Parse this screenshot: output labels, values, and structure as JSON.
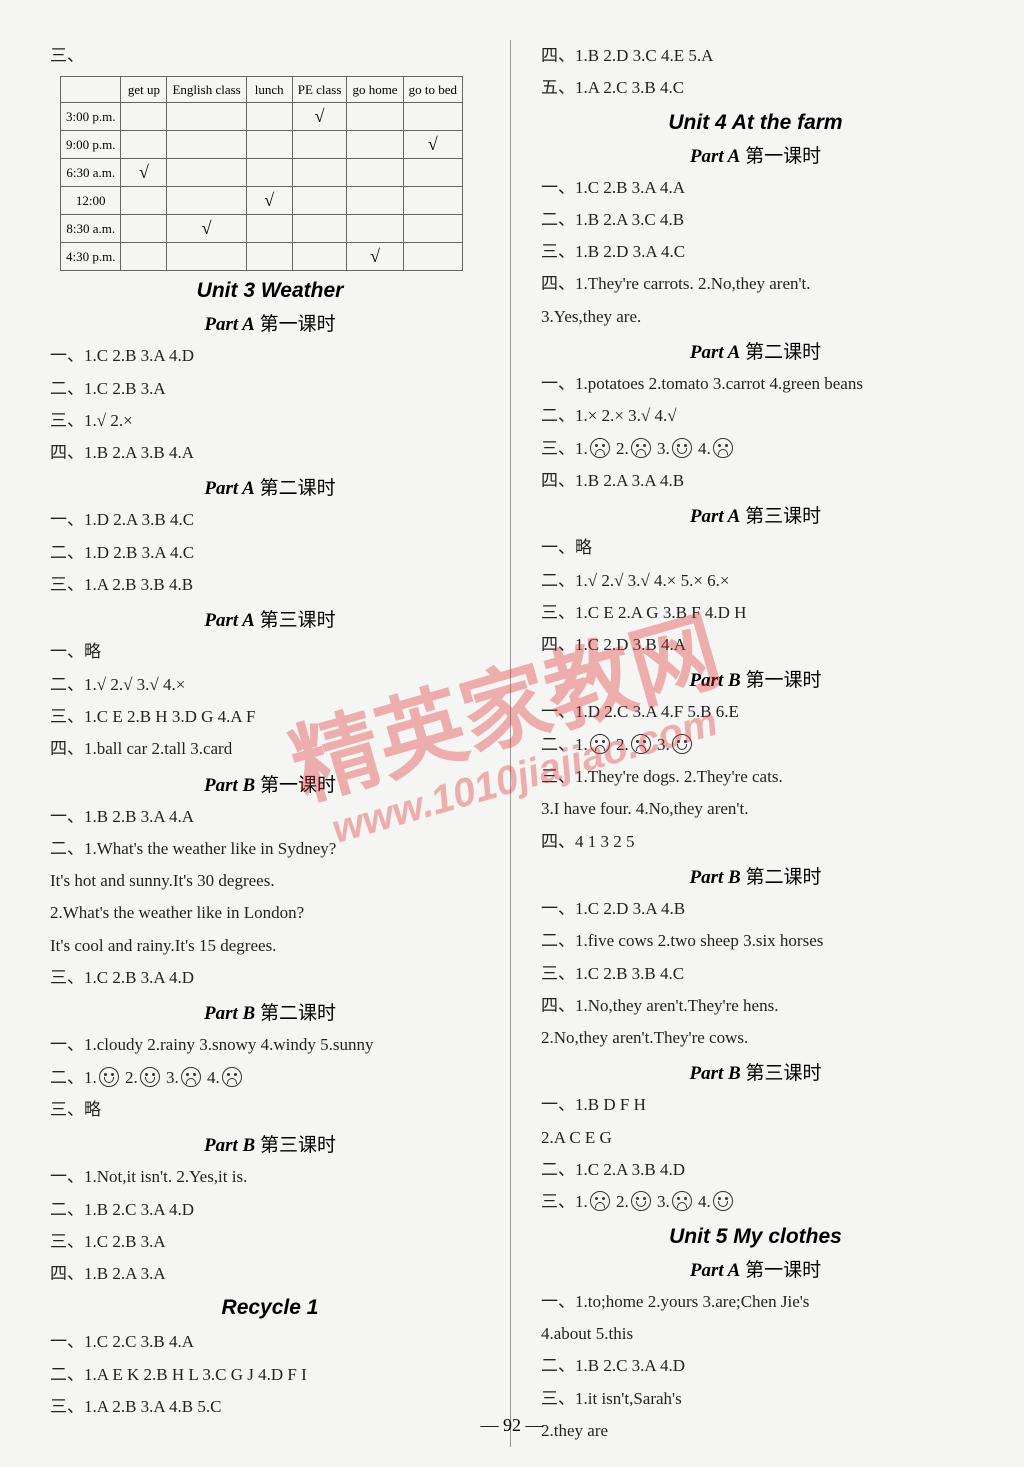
{
  "watermark": {
    "text": "精英家教网",
    "url": "www.1010jiajiao.com"
  },
  "pagenum": "— 92 —",
  "left": {
    "san": "三、",
    "table": {
      "headers": [
        "",
        "get up",
        "English class",
        "lunch",
        "PE class",
        "go home",
        "go to bed"
      ],
      "rows": [
        {
          "label": "3:00 p.m.",
          "check": 4
        },
        {
          "label": "9:00 p.m.",
          "check": 6
        },
        {
          "label": "6:30 a.m.",
          "check": 1
        },
        {
          "label": "12:00",
          "check": 3
        },
        {
          "label": "8:30 a.m.",
          "check": 2
        },
        {
          "label": "4:30 p.m.",
          "check": 5
        }
      ]
    },
    "unit3": "Unit 3  Weather",
    "partA1": "第一课时",
    "a1_1": "一、1.C  2.B  3.A  4.D",
    "a1_2": "二、1.C  2.B  3.A",
    "a1_3": "三、1.√  2.×",
    "a1_4": "四、1.B  2.A  3.B  4.A",
    "partA2": "第二课时",
    "a2_1": "一、1.D  2.A  3.B  4.C",
    "a2_2": "二、1.D  2.B  3.A  4.C",
    "a2_3": "三、1.A  2.B  3.B  4.B",
    "partA3": "第三课时",
    "a3_1": "一、略",
    "a3_2": "二、1.√  2.√  3.√  4.×",
    "a3_3": "三、1.C  E  2.B  H  3.D  G  4.A  F",
    "a3_4": "四、1.ball  car  2.tall  3.card",
    "partB1": "第一课时",
    "b1_1": "一、1.B  2.B  3.A  4.A",
    "b1_2a": "二、1.What's the weather like in Sydney?",
    "b1_2b": "    It's hot and sunny.It's 30 degrees.",
    "b1_2c": "  2.What's the weather like in London?",
    "b1_2d": "    It's cool and rainy.It's 15 degrees.",
    "b1_3": "三、1.C  2.B  3.A  4.D",
    "partB2": "第二课时",
    "b2_1": "一、1.cloudy  2.rainy  3.snowy  4.windy  5.sunny",
    "b2_2p": "二、1.",
    "b2_2faces": [
      "smile",
      "smile",
      "sad",
      "sad"
    ],
    "b2_3": "三、略",
    "partB3": "第三课时",
    "b3_1": "一、1.Not,it isn't.  2.Yes,it is.",
    "b3_2": "二、1.B  2.C  3.A  4.D",
    "b3_3": "三、1.C  2.B  3.A",
    "b3_4": "四、1.B  2.A  3.A",
    "recycleH": "Recycle  1",
    "r_1": "一、1.C  2.C  3.B  4.A",
    "r_2": "二、1.A  E  K  2.B  H  L  3.C  G  J  4.D  F  I",
    "r_3": "三、1.A  2.B  3.A  4.B  5.C"
  },
  "right": {
    "l0a": "四、1.B  2.D  3.C  4.E  5.A",
    "l0b": "五、1.A  2.C  3.B  4.C",
    "unit4": "Unit 4  At the farm",
    "partA1": "第一课时",
    "a1_1": "一、1.C  2.B  3.A  4.A",
    "a1_2": "二、1.B  2.A  3.C  4.B",
    "a1_3": "三、1.B  2.D  3.A  4.C",
    "a1_4a": "四、1.They're carrots.  2.No,they aren't.",
    "a1_4b": "  3.Yes,they are.",
    "partA2": "第二课时",
    "a2_1": "一、1.potatoes  2.tomato  3.carrot  4.green beans",
    "a2_2": "二、1.×  2.×  3.√  4.√",
    "a2_3p": "三、1.",
    "a2_3faces": [
      "sad",
      "sad",
      "smile",
      "sad"
    ],
    "a2_4": "四、1.B  2.A  3.A  4.B",
    "partA3": "第三课时",
    "a3_1": "一、略",
    "a3_2": "二、1.√  2.√  3.√  4.×  5.×  6.×",
    "a3_3": "三、1.C  E  2.A  G  3.B  F  4.D  H",
    "a3_4": "四、1.C  2.D  3.B  4.A",
    "partB1": "第一课时",
    "b1_1": "一、1.D  2.C  3.A  4.F  5.B  6.E",
    "b1_2p": "二、1.",
    "b1_2faces": [
      "sad",
      "sad",
      "smile"
    ],
    "b1_3a": "三、1.They're dogs.  2.They're cats.",
    "b1_3b": "  3.I have four.   4.No,they aren't.",
    "b1_4": "四、4  1  3  2  5",
    "partB2": "第二课时",
    "b2_1": "一、1.C  2.D  3.A  4.B",
    "b2_2": "二、1.five cows  2.two sheep  3.six horses",
    "b2_3": "三、1.C  2.B  3.B  4.C",
    "b2_4a": "四、1.No,they aren't.They're hens.",
    "b2_4b": "  2.No,they aren't.They're cows.",
    "partB3": "第三课时",
    "b3_1a": "一、1.B  D  F  H",
    "b3_1b": "  2.A  C  E  G",
    "b3_2": "二、1.C  2.A  3.B  4.D",
    "b3_3p": "三、1.",
    "b3_3faces": [
      "sad",
      "smile",
      "sad",
      "smile"
    ],
    "unit5": "Unit 5  My clothes",
    "partA1b": "第一课时",
    "u5_1a": "一、1.to;home  2.yours  3.are;Chen Jie's",
    "u5_1b": "  4.about  5.this",
    "u5_2": "二、1.B  2.C  3.A  4.D",
    "u5_3a": "三、1.it isn't,Sarah's",
    "u5_3b": "  2.they are"
  }
}
